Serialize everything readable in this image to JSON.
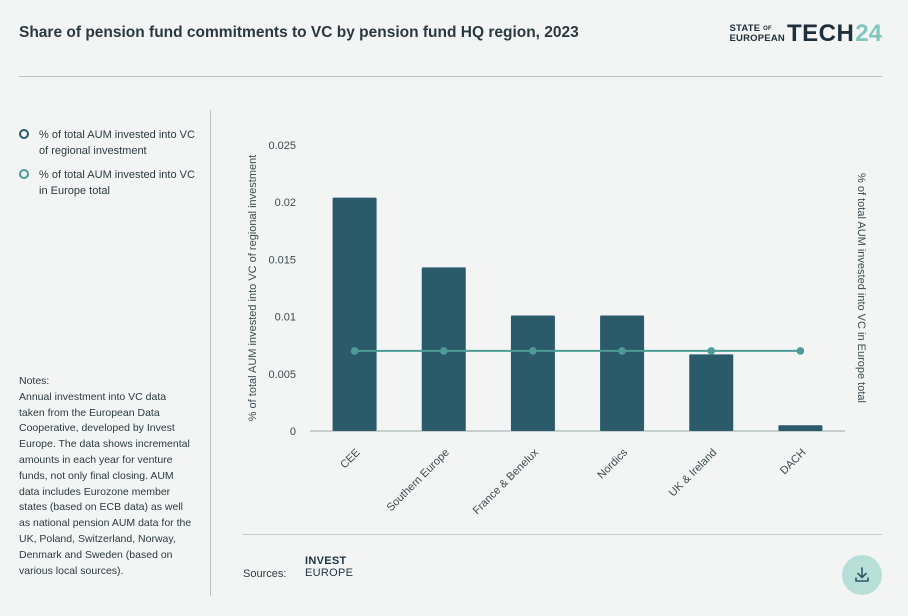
{
  "header": {
    "title": "Share of pension fund commitments to VC by pension fund HQ region, 2023",
    "logo": {
      "line1": "STATE",
      "of": "OF",
      "line2": "EUROPEAN",
      "tech": "TECH",
      "year": "24"
    }
  },
  "legend": [
    {
      "label": "% of total AUM invested into VC of regional investment",
      "color": "#2b5a6b"
    },
    {
      "label": "% of total AUM invested into VC in Europe total",
      "color": "#4d9a96"
    }
  ],
  "notes": "Notes:\nAnnual investment into VC data taken from the European Data Cooperative, developed by Invest Europe. The data shows incremental amounts in each year for venture funds, not only final closing. AUM data includes Eurozone member states (based on ECB data) as well as national pension AUM data for the UK, Poland, Switzerland, Norway, Denmark and Sweden (based on various local sources).",
  "sources": {
    "label": "Sources:",
    "logo_line1": "INVEST",
    "logo_line2": "EUROPE"
  },
  "download_icon": "download-icon",
  "chart_data": {
    "type": "bar",
    "title": "Share of pension fund commitments to VC by pension fund HQ region, 2023",
    "categories": [
      "CEE",
      "Southern Europe",
      "France & Benelux",
      "Nordics",
      "UK & Ireland",
      "DACH"
    ],
    "series": [
      {
        "name": "% of total AUM invested into VC of regional investment",
        "type": "bar",
        "color": "#2b5a6b",
        "values": [
          0.0204,
          0.0143,
          0.0101,
          0.0101,
          0.0067,
          0.0005
        ]
      },
      {
        "name": "% of total AUM invested into VC in Europe total",
        "type": "line",
        "color": "#4d9a96",
        "values": [
          0.007,
          0.007,
          0.007,
          0.007,
          0.007,
          0.007
        ]
      }
    ],
    "ylabel": "% of total AUM invested into VC of regional investment",
    "y2label": "% of total AUM invested into VC in Europe total",
    "ylim": [
      0,
      0.025
    ],
    "yticks": [
      "0",
      "0.005",
      "0.01",
      "0.015",
      "0.02",
      "0.025"
    ],
    "grid": false,
    "legend_position": "left"
  }
}
